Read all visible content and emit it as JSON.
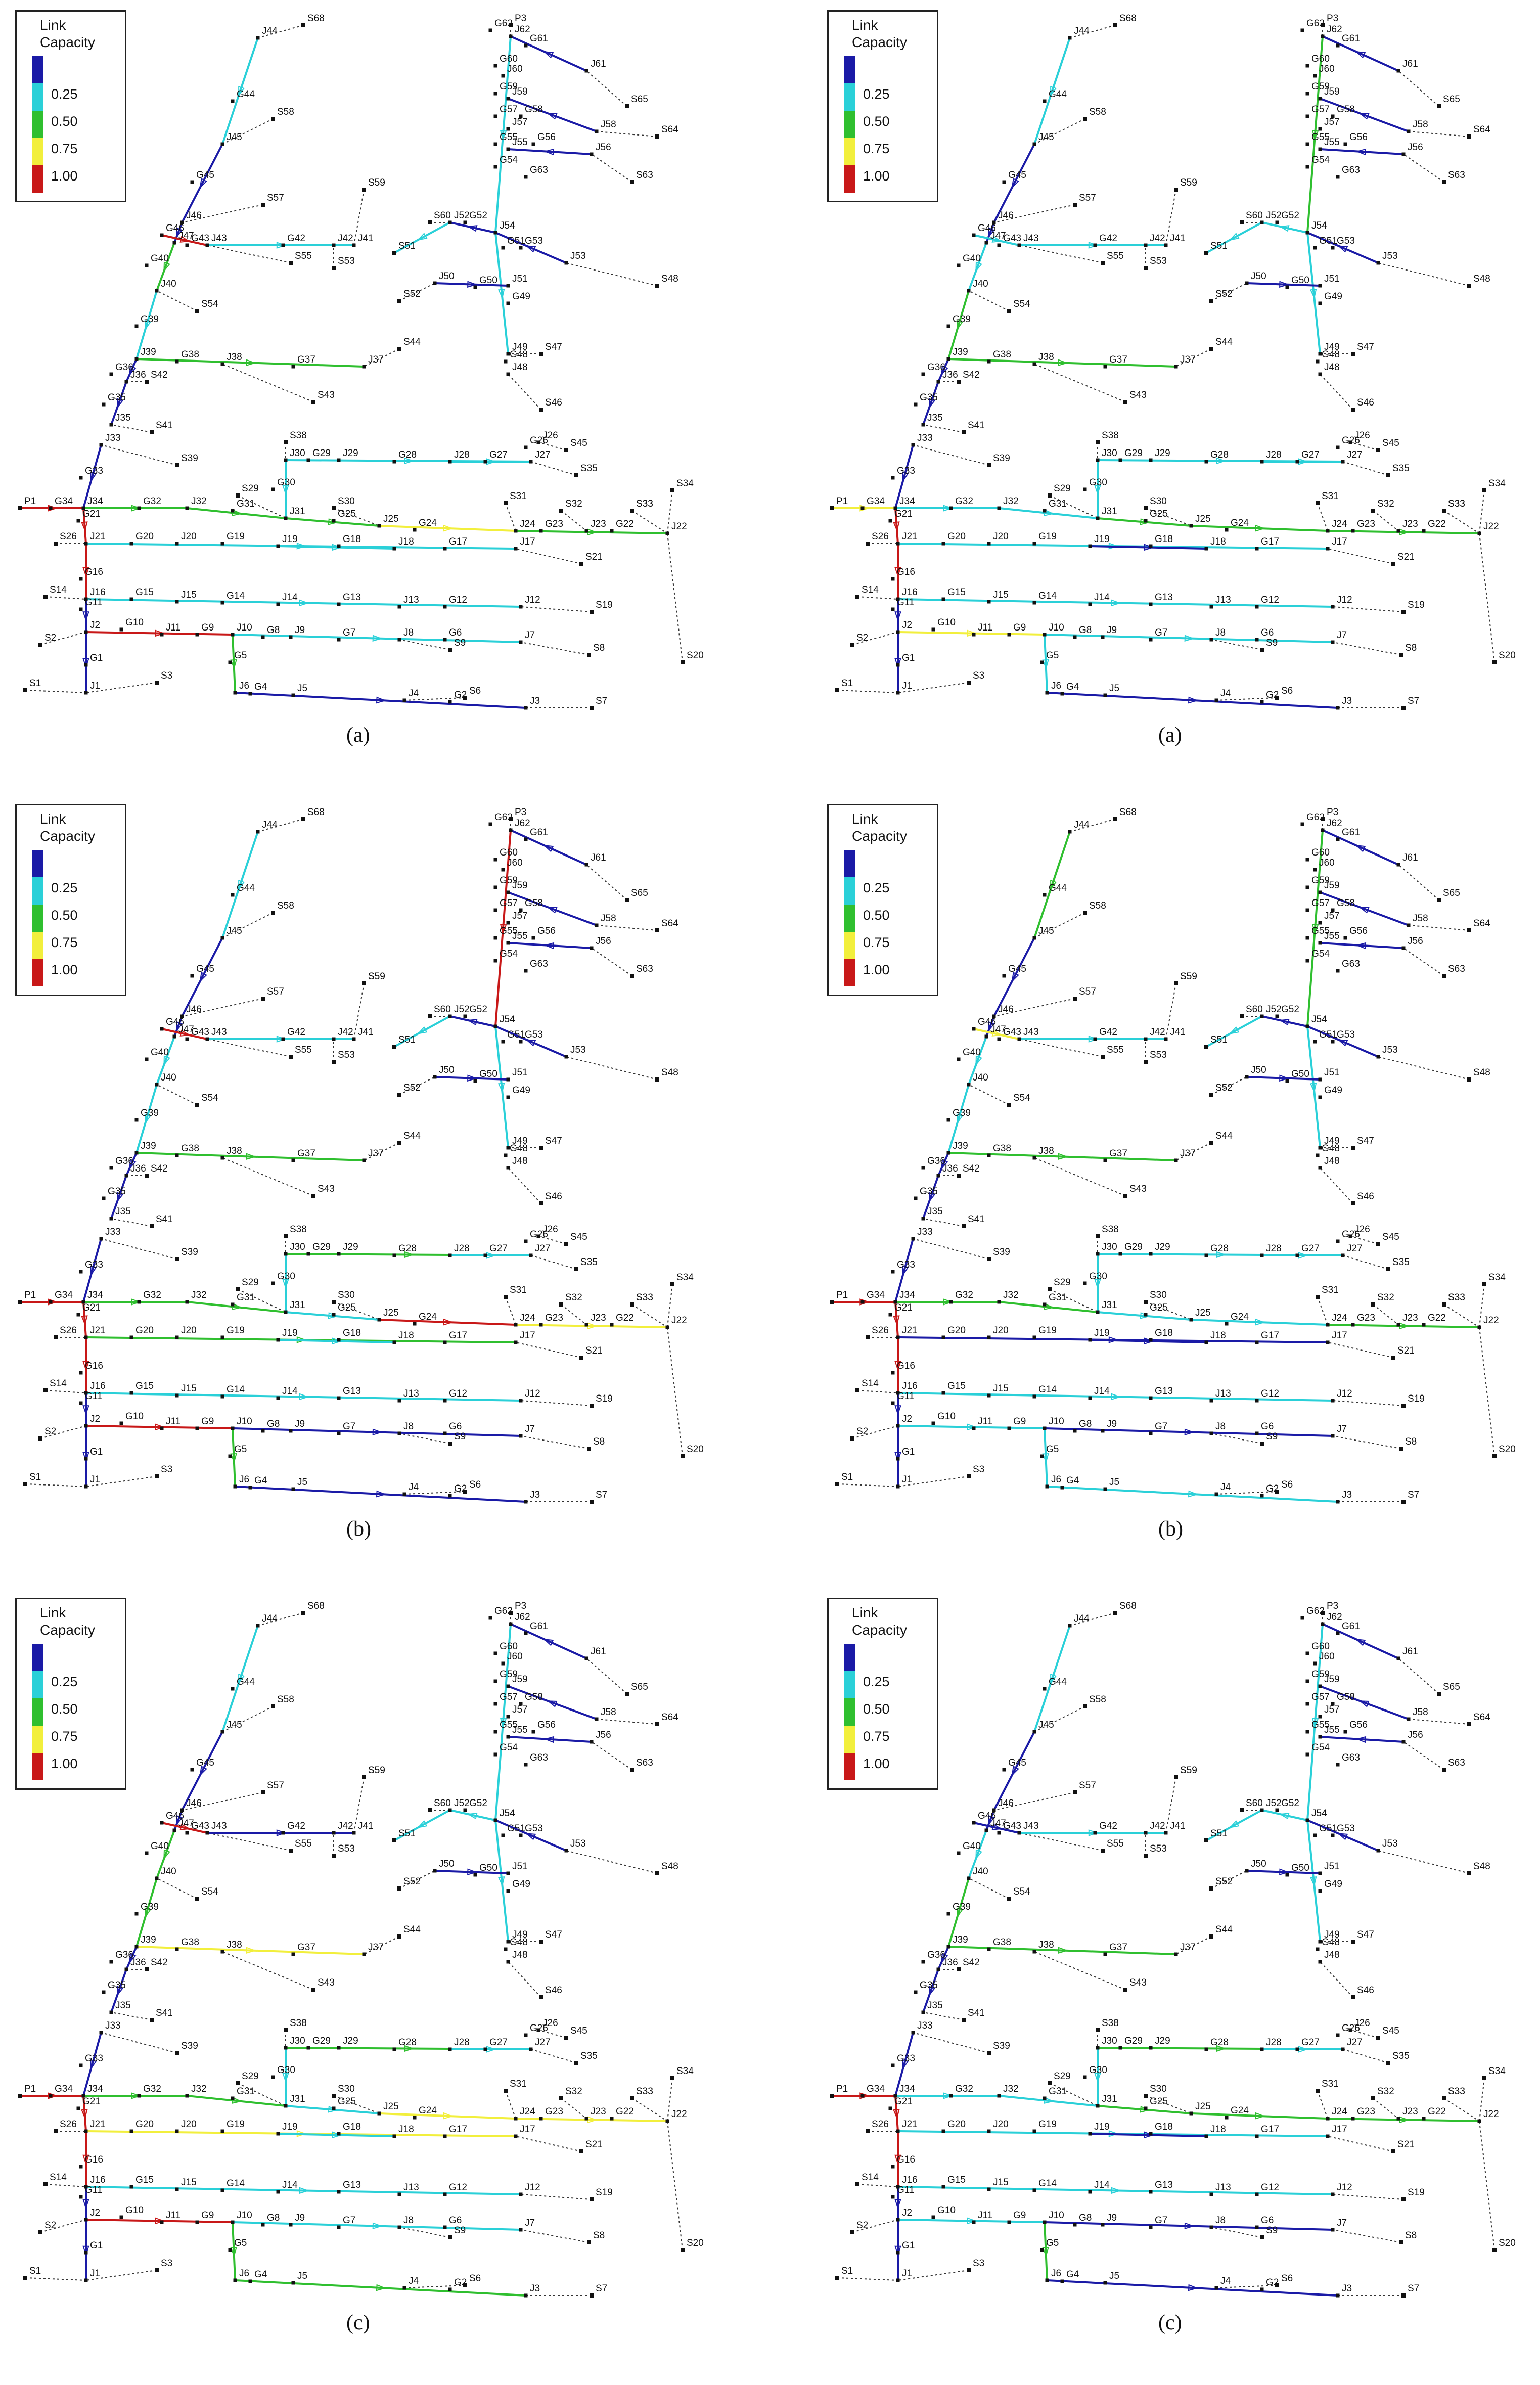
{
  "legend": {
    "title_line1": "Link",
    "title_line2": "Capacity",
    "levels": [
      "0.25",
      "0.50",
      "0.75",
      "1.00"
    ],
    "colors": [
      "#1a1aa6",
      "#2ad0d8",
      "#2fbf2f",
      "#f2ef3c",
      "#c81818"
    ]
  },
  "panels": [
    {
      "caption": "(a)"
    },
    {
      "caption": "(a)"
    },
    {
      "caption": "(b)"
    },
    {
      "caption": "(b)"
    },
    {
      "caption": "(c)"
    },
    {
      "caption": "(c)"
    }
  ],
  "network": {
    "node_labels": [
      "S68",
      "J44",
      "G44",
      "S58",
      "J45",
      "G45",
      "S57",
      "J46",
      "G46",
      "J47",
      "G43",
      "J43",
      "G42",
      "S55",
      "J42",
      "J41",
      "S53",
      "S59",
      "S51",
      "S60",
      "J52",
      "G52",
      "J54",
      "G51",
      "J53",
      "S48",
      "G53",
      "J50",
      "G50",
      "G49",
      "J51",
      "S52",
      "S54",
      "J40",
      "G40",
      "G39",
      "J39",
      "G38",
      "J38",
      "G37",
      "J37",
      "S44",
      "S43",
      "J49",
      "G48",
      "J48",
      "S47",
      "S46",
      "J36",
      "G36",
      "S42",
      "J35",
      "G35",
      "S41",
      "S39",
      "S33",
      "J33",
      "G33",
      "S38",
      "J30",
      "G29",
      "J29",
      "G28",
      "J28",
      "G27",
      "J27",
      "G26",
      "J26",
      "S45",
      "S35",
      "S29",
      "G30",
      "J31",
      "G31",
      "J32",
      "G32",
      "S30",
      "G25",
      "J25",
      "G24",
      "S31",
      "J24",
      "G23",
      "S32",
      "J23",
      "G22",
      "S33",
      "J22",
      "S34",
      "P1",
      "G34",
      "J34",
      "G21",
      "S26",
      "J21",
      "G20",
      "J20",
      "G19",
      "J19",
      "G18",
      "J18",
      "G17",
      "J17",
      "S21",
      "G16",
      "S14",
      "J16",
      "G15",
      "J15",
      "G14",
      "J14",
      "G13",
      "J13",
      "G12",
      "J12",
      "S19",
      "G11",
      "S2",
      "J2",
      "G10",
      "J11",
      "G9",
      "J10",
      "G8",
      "J9",
      "G7",
      "J8",
      "G6",
      "J7",
      "S9",
      "S8",
      "G1",
      "G5",
      "J6",
      "G4",
      "J5",
      "G35",
      "J4",
      "G2",
      "S6",
      "J3",
      "S7",
      "S1",
      "J1",
      "S3",
      "S20",
      "G62",
      "P3",
      "J62",
      "G61",
      "J61",
      "G60",
      "J60",
      "S65",
      "G59",
      "J59",
      "S59",
      "G58",
      "G57",
      "J58",
      "S64",
      "J57",
      "G56",
      "J55",
      "G55",
      "J56",
      "S63",
      "G54",
      "J54",
      "G63"
    ]
  }
}
